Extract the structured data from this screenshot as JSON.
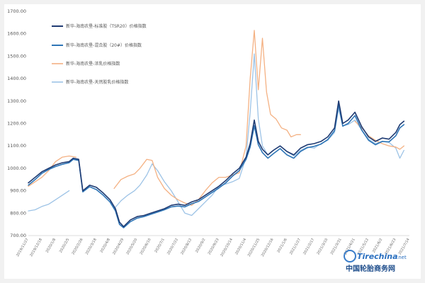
{
  "chart_data": {
    "type": "line",
    "title": "",
    "xlabel": "",
    "ylabel": "",
    "ylim": [
      700,
      1700
    ],
    "yticks": [
      "700.00",
      "800.00",
      "900.00",
      "1000.00",
      "1100.00",
      "1200.00",
      "1300.00",
      "1400.00",
      "1500.00",
      "1600.00",
      "1700.00"
    ],
    "xticks": [
      "2019/11/27",
      "2019/12/18",
      "2020/1/8",
      "2020/2/5",
      "2020/2/26",
      "2020/3/18",
      "2020/4/8",
      "2020/4/29",
      "2020/5/20",
      "2020/6/10",
      "2020/7/1",
      "2020/7/22",
      "2020/8/12",
      "2020/9/2",
      "2020/9/23",
      "2020/10/14",
      "2020/11/4",
      "2020/11/25",
      "2020/12/16",
      "2021/1/6",
      "2021/1/27",
      "2021/2/17",
      "2021/3/10",
      "2021/3/31",
      "2021/4/21",
      "2021/5/12",
      "2021/6/2",
      "2021/6/23",
      "2021/7/14"
    ],
    "legend_position": "top-left",
    "grid": false,
    "series": [
      {
        "name": "新华-海南农垦-标准胶（TSR20）价格指数",
        "color": "#1f3b73",
        "points": [
          [
            0,
            935
          ],
          [
            0.5,
            960
          ],
          [
            1,
            985
          ],
          [
            1.5,
            1000
          ],
          [
            2,
            1015
          ],
          [
            2.5,
            1025
          ],
          [
            3,
            1030
          ],
          [
            3.3,
            1045
          ],
          [
            3.7,
            1040
          ],
          [
            4,
            900
          ],
          [
            4.5,
            925
          ],
          [
            5,
            915
          ],
          [
            5.5,
            890
          ],
          [
            6,
            860
          ],
          [
            6.4,
            820
          ],
          [
            6.7,
            760
          ],
          [
            7,
            740
          ],
          [
            7.5,
            770
          ],
          [
            8,
            785
          ],
          [
            8.5,
            790
          ],
          [
            9,
            800
          ],
          [
            9.5,
            810
          ],
          [
            10,
            820
          ],
          [
            10.5,
            835
          ],
          [
            11,
            840
          ],
          [
            11.5,
            835
          ],
          [
            12,
            850
          ],
          [
            12.5,
            860
          ],
          [
            13,
            880
          ],
          [
            13.5,
            900
          ],
          [
            14,
            920
          ],
          [
            14.5,
            945
          ],
          [
            15,
            975
          ],
          [
            15.5,
            1000
          ],
          [
            16,
            1050
          ],
          [
            16.3,
            1110
          ],
          [
            16.6,
            1215
          ],
          [
            16.9,
            1120
          ],
          [
            17.2,
            1085
          ],
          [
            17.6,
            1060
          ],
          [
            18,
            1080
          ],
          [
            18.5,
            1100
          ],
          [
            19,
            1075
          ],
          [
            19.5,
            1060
          ],
          [
            20,
            1090
          ],
          [
            20.5,
            1105
          ],
          [
            21,
            1110
          ],
          [
            21.5,
            1120
          ],
          [
            22,
            1140
          ],
          [
            22.5,
            1180
          ],
          [
            22.8,
            1300
          ],
          [
            23.1,
            1200
          ],
          [
            23.5,
            1215
          ],
          [
            24,
            1250
          ],
          [
            24.5,
            1185
          ],
          [
            25,
            1140
          ],
          [
            25.5,
            1120
          ],
          [
            26,
            1135
          ],
          [
            26.5,
            1130
          ],
          [
            27,
            1160
          ],
          [
            27.3,
            1195
          ],
          [
            27.6,
            1210
          ]
        ]
      },
      {
        "name": "新华-海南农垦-混合胶（20#）价格指数",
        "color": "#2e75b6",
        "points": [
          [
            0,
            925
          ],
          [
            0.5,
            950
          ],
          [
            1,
            978
          ],
          [
            1.5,
            995
          ],
          [
            2,
            1008
          ],
          [
            2.5,
            1018
          ],
          [
            3,
            1025
          ],
          [
            3.3,
            1040
          ],
          [
            3.7,
            1035
          ],
          [
            4,
            895
          ],
          [
            4.5,
            918
          ],
          [
            5,
            905
          ],
          [
            5.5,
            880
          ],
          [
            6,
            850
          ],
          [
            6.4,
            810
          ],
          [
            6.7,
            750
          ],
          [
            7,
            735
          ],
          [
            7.5,
            762
          ],
          [
            8,
            778
          ],
          [
            8.5,
            785
          ],
          [
            9,
            795
          ],
          [
            9.5,
            805
          ],
          [
            10,
            815
          ],
          [
            10.5,
            828
          ],
          [
            11,
            832
          ],
          [
            11.5,
            828
          ],
          [
            12,
            842
          ],
          [
            12.5,
            852
          ],
          [
            13,
            872
          ],
          [
            13.5,
            892
          ],
          [
            14,
            912
          ],
          [
            14.5,
            935
          ],
          [
            15,
            965
          ],
          [
            15.5,
            990
          ],
          [
            16,
            1040
          ],
          [
            16.3,
            1095
          ],
          [
            16.6,
            1190
          ],
          [
            16.9,
            1105
          ],
          [
            17.2,
            1070
          ],
          [
            17.6,
            1045
          ],
          [
            18,
            1065
          ],
          [
            18.5,
            1088
          ],
          [
            19,
            1060
          ],
          [
            19.5,
            1045
          ],
          [
            20,
            1075
          ],
          [
            20.5,
            1092
          ],
          [
            21,
            1098
          ],
          [
            21.5,
            1108
          ],
          [
            22,
            1128
          ],
          [
            22.5,
            1168
          ],
          [
            22.8,
            1285
          ],
          [
            23.1,
            1188
          ],
          [
            23.5,
            1200
          ],
          [
            24,
            1235
          ],
          [
            24.5,
            1170
          ],
          [
            25,
            1125
          ],
          [
            25.5,
            1105
          ],
          [
            26,
            1120
          ],
          [
            26.5,
            1118
          ],
          [
            27,
            1145
          ],
          [
            27.3,
            1180
          ],
          [
            27.6,
            1195
          ]
        ]
      },
      {
        "name": "新华-海南农垦-浓乳价格指数",
        "color": "#f4b183",
        "points": [
          [
            0,
            920
          ],
          [
            0.5,
            940
          ],
          [
            1,
            960
          ],
          [
            1.5,
            990
          ],
          [
            2,
            1030
          ],
          [
            2.5,
            1050
          ],
          [
            3,
            1055
          ],
          [
            3.5,
            1050
          ],
          [
            5.8,
            null
          ],
          [
            6.3,
            910
          ],
          [
            6.8,
            950
          ],
          [
            7.3,
            965
          ],
          [
            7.8,
            975
          ],
          [
            8.2,
            1000
          ],
          [
            8.7,
            1040
          ],
          [
            9.1,
            1035
          ],
          [
            9.5,
            960
          ],
          [
            10,
            910
          ],
          [
            10.5,
            880
          ],
          [
            11,
            860
          ],
          [
            11.5,
            845
          ],
          [
            12,
            835
          ],
          [
            12.5,
            860
          ],
          [
            13,
            900
          ],
          [
            13.5,
            935
          ],
          [
            14,
            960
          ],
          [
            14.5,
            960
          ],
          [
            15,
            970
          ],
          [
            15.5,
            980
          ],
          [
            16,
            1100
          ],
          [
            16.3,
            1400
          ],
          [
            16.6,
            1615
          ],
          [
            16.9,
            1350
          ],
          [
            17.2,
            1580
          ],
          [
            17.5,
            1340
          ],
          [
            17.8,
            1240
          ],
          [
            18.2,
            1220
          ],
          [
            18.6,
            1180
          ],
          [
            19,
            1170
          ],
          [
            19.3,
            1140
          ],
          [
            19.7,
            1150
          ],
          [
            20,
            1150
          ],
          [
            23.5,
            null
          ],
          [
            24,
            1210
          ],
          [
            24.5,
            1180
          ],
          [
            25,
            1145
          ],
          [
            25.5,
            1125
          ],
          [
            26,
            1110
          ],
          [
            26.5,
            1100
          ],
          [
            27,
            1095
          ],
          [
            27.3,
            1085
          ],
          [
            27.6,
            1100
          ]
        ]
      },
      {
        "name": "新华-海南农垦-天然胶乳价格指数",
        "color": "#9dc3e6",
        "points": [
          [
            0,
            810
          ],
          [
            0.5,
            815
          ],
          [
            1,
            830
          ],
          [
            1.5,
            840
          ],
          [
            2,
            860
          ],
          [
            2.5,
            880
          ],
          [
            3,
            900
          ],
          [
            5.8,
            null
          ],
          [
            6.3,
            820
          ],
          [
            6.8,
            855
          ],
          [
            7.3,
            880
          ],
          [
            7.8,
            900
          ],
          [
            8.2,
            925
          ],
          [
            8.7,
            970
          ],
          [
            9.1,
            1020
          ],
          [
            9.5,
            990
          ],
          [
            10,
            940
          ],
          [
            10.5,
            900
          ],
          [
            11,
            850
          ],
          [
            11.5,
            800
          ],
          [
            12,
            790
          ],
          [
            12.5,
            820
          ],
          [
            13,
            850
          ],
          [
            13.5,
            880
          ],
          [
            14,
            920
          ],
          [
            14.5,
            930
          ],
          [
            15,
            940
          ],
          [
            15.5,
            955
          ],
          [
            16,
            1050
          ],
          [
            16.3,
            1250
          ],
          [
            16.6,
            1510
          ],
          [
            16.9,
            1220
          ],
          [
            17.2,
            1100
          ],
          [
            17.6,
            1060
          ],
          [
            18,
            1080
          ],
          [
            18.5,
            1100
          ],
          [
            19,
            1075
          ],
          [
            19.5,
            1055
          ],
          [
            20,
            1080
          ],
          [
            20.5,
            1095
          ],
          [
            21,
            1090
          ],
          [
            21.5,
            1110
          ],
          [
            22,
            1125
          ],
          [
            22.5,
            1160
          ],
          [
            22.8,
            1265
          ],
          [
            23.1,
            1190
          ],
          [
            23.5,
            1195
          ],
          [
            24,
            1215
          ],
          [
            24.5,
            1170
          ],
          [
            25,
            1130
          ],
          [
            25.5,
            1110
          ],
          [
            26,
            1120
          ],
          [
            26.5,
            1115
          ],
          [
            27,
            1090
          ],
          [
            27.3,
            1045
          ],
          [
            27.6,
            1080
          ]
        ]
      }
    ]
  },
  "watermark": {
    "brand_top": "Tirechina",
    "brand_suffix": ".net",
    "brand_bottom": "中国轮胎商务网"
  }
}
